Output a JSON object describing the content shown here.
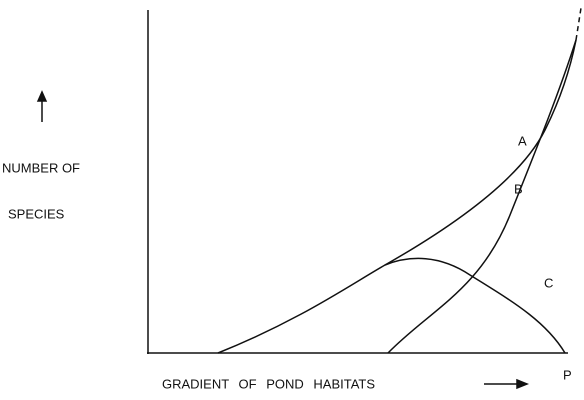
{
  "y_axis_label": {
    "line1": "NUMBER OF",
    "line2": "SPECIES"
  },
  "x_axis_label": "GRADIENT OF POND HABITATS",
  "curves": [
    {
      "label": "A"
    },
    {
      "label": "B"
    },
    {
      "label": "C"
    }
  ],
  "end_label": "P"
}
